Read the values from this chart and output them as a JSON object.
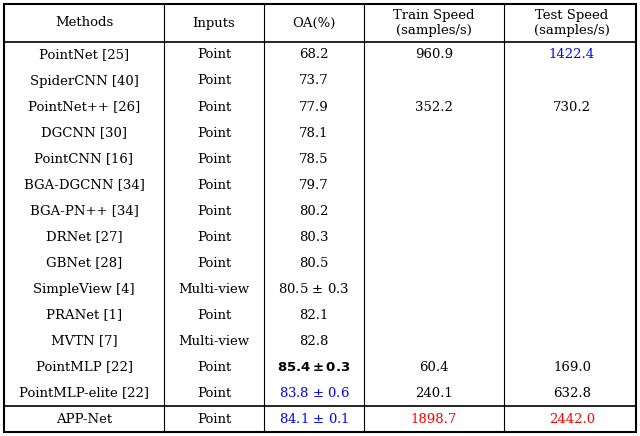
{
  "col_headers": [
    "Methods",
    "Inputs",
    "OA(%)",
    "Train Speed\n(samples/s)",
    "Test Speed\n(samples/s)"
  ],
  "rows": [
    [
      "PointNet [25]",
      "Point",
      "68.2",
      "960.9",
      "1422.4"
    ],
    [
      "SpiderCNN [40]",
      "Point",
      "73.7",
      "",
      ""
    ],
    [
      "PointNet++ [26]",
      "Point",
      "77.9",
      "352.2",
      "730.2"
    ],
    [
      "DGCNN [30]",
      "Point",
      "78.1",
      "",
      ""
    ],
    [
      "PointCNN [16]",
      "Point",
      "78.5",
      "",
      ""
    ],
    [
      "BGA-DGCNN [34]",
      "Point",
      "79.7",
      "",
      ""
    ],
    [
      "BGA-PN++ [34]",
      "Point",
      "80.2",
      "",
      ""
    ],
    [
      "DRNet [27]",
      "Point",
      "80.3",
      "",
      ""
    ],
    [
      "GBNet [28]",
      "Point",
      "80.5",
      "",
      ""
    ],
    [
      "SimpleView [4]",
      "Multi-view",
      "80.5 ± 0.3",
      "",
      ""
    ],
    [
      "PRANet [1]",
      "Point",
      "82.1",
      "",
      ""
    ],
    [
      "MVTN [7]",
      "Multi-view",
      "82.8",
      "",
      ""
    ],
    [
      "PointMLP [22]",
      "Point",
      "85.4 ± 0.3",
      "60.4",
      "169.0"
    ],
    [
      "PointMLP-elite [22]",
      "Point",
      "83.8 ± 0.6",
      "240.1",
      "632.8"
    ],
    [
      "APP-Net",
      "Point",
      "84.1 ± 0.1",
      "1898.7",
      "2442.0"
    ]
  ],
  "special_colors": {
    "0,4": "blue",
    "13,2": "blue",
    "14,2": "blue",
    "14,3": "red",
    "14,4": "red"
  },
  "bold_row": 12,
  "font_size": 9.5
}
